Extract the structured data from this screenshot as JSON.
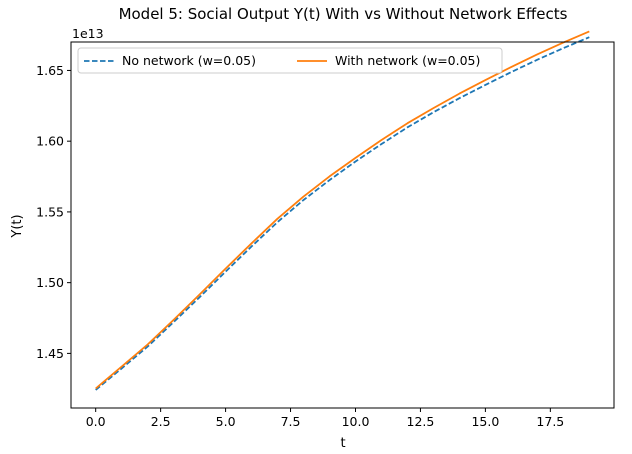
{
  "chart_data": {
    "type": "line",
    "title": "Model 5: Social Output Y(t) With vs Without Network Effects",
    "xlabel": "t",
    "ylabel": "Y(t)",
    "offset_label": "1e13",
    "xlim": [
      -0.95,
      19.95
    ],
    "ylim": [
      1.4114,
      1.6701
    ],
    "xticks": [
      0,
      2.5,
      5,
      7.5,
      10,
      12.5,
      15,
      17.5
    ],
    "xtick_labels": [
      "0.0",
      "2.5",
      "5.0",
      "7.5",
      "10.0",
      "12.5",
      "15.0",
      "17.5"
    ],
    "yticks": [
      1.45,
      1.5,
      1.55,
      1.6,
      1.65
    ],
    "ytick_labels": [
      "1.45",
      "1.50",
      "1.55",
      "1.60",
      "1.65"
    ],
    "legend_position": "top-left",
    "x": [
      0,
      1,
      2,
      3,
      4,
      5,
      6,
      7,
      8,
      9,
      10,
      11,
      12,
      13,
      14,
      15,
      16,
      17,
      18,
      19
    ],
    "series": [
      {
        "name": "No network (w=0.05)",
        "color": "#1f77b4",
        "style": "dashed",
        "values": [
          1.4242,
          1.4394,
          1.4548,
          1.4721,
          1.4897,
          1.5078,
          1.5256,
          1.5428,
          1.5584,
          1.5725,
          1.5856,
          1.598,
          1.6098,
          1.6204,
          1.6304,
          1.6398,
          1.6489,
          1.6576,
          1.6657,
          1.6735
        ]
      },
      {
        "name": "With network (w=0.05)",
        "color": "#ff7f0e",
        "style": "solid",
        "values": [
          1.4252,
          1.4407,
          1.4563,
          1.4737,
          1.4916,
          1.5099,
          1.5278,
          1.5452,
          1.5608,
          1.5751,
          1.5882,
          1.6008,
          1.6127,
          1.6234,
          1.6336,
          1.6432,
          1.6525,
          1.6614,
          1.6697,
          1.6776
        ]
      }
    ]
  }
}
